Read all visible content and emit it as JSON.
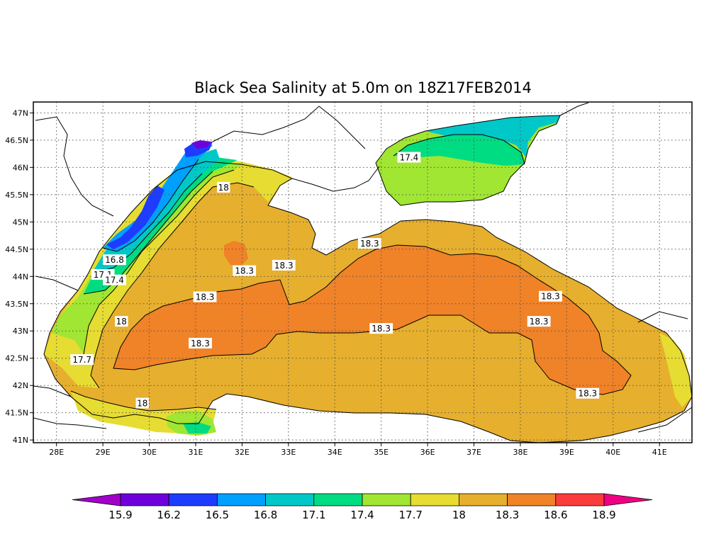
{
  "title": "Black Sea Salinity at 5.0m on 18Z17FEB2014",
  "map": {
    "lon_range": [
      27.5,
      41.7
    ],
    "lat_range": [
      40.95,
      47.2
    ],
    "x_ticks": [
      {
        "value": 28,
        "label": "28E"
      },
      {
        "value": 29,
        "label": "29E"
      },
      {
        "value": 30,
        "label": "30E"
      },
      {
        "value": 31,
        "label": "31E"
      },
      {
        "value": 32,
        "label": "32E"
      },
      {
        "value": 33,
        "label": "33E"
      },
      {
        "value": 34,
        "label": "34E"
      },
      {
        "value": 35,
        "label": "35E"
      },
      {
        "value": 36,
        "label": "36E"
      },
      {
        "value": 37,
        "label": "37E"
      },
      {
        "value": 38,
        "label": "38E"
      },
      {
        "value": 39,
        "label": "39E"
      },
      {
        "value": 40,
        "label": "40E"
      },
      {
        "value": 41,
        "label": "41E"
      }
    ],
    "y_ticks": [
      {
        "value": 41,
        "label": "41N"
      },
      {
        "value": 41.5,
        "label": "41.5N"
      },
      {
        "value": 42,
        "label": "42N"
      },
      {
        "value": 42.5,
        "label": "42.5N"
      },
      {
        "value": 43,
        "label": "43N"
      },
      {
        "value": 43.5,
        "label": "43.5N"
      },
      {
        "value": 44,
        "label": "44N"
      },
      {
        "value": 44.5,
        "label": "44.5N"
      },
      {
        "value": 45,
        "label": "45N"
      },
      {
        "value": 45.5,
        "label": "45.5N"
      },
      {
        "value": 46,
        "label": "46N"
      },
      {
        "value": 46.5,
        "label": "46.5N"
      },
      {
        "value": 47,
        "label": "47N"
      }
    ],
    "grid": true
  },
  "colorbar": {
    "levels": [
      "15.9",
      "16.2",
      "16.5",
      "16.8",
      "17.1",
      "17.4",
      "17.7",
      "18",
      "18.3",
      "18.6",
      "18.9"
    ],
    "colors": [
      "#a000c8",
      "#6e00dc",
      "#1e3cff",
      "#00a0ff",
      "#00c8c8",
      "#00dc82",
      "#a0e632",
      "#e6dc32",
      "#e6af2d",
      "#f08228",
      "#fa3c3c",
      "#f00082"
    ]
  },
  "contour_labels": [
    {
      "text": "18",
      "lon": 31.6,
      "lat": 45.63
    },
    {
      "text": "16.8",
      "lon": 29.25,
      "lat": 44.3
    },
    {
      "text": "17.1",
      "lon": 29.0,
      "lat": 44.03
    },
    {
      "text": "17.4",
      "lon": 29.25,
      "lat": 43.93
    },
    {
      "text": "18.3",
      "lon": 31.2,
      "lat": 43.62
    },
    {
      "text": "18",
      "lon": 29.4,
      "lat": 43.17
    },
    {
      "text": "17.7",
      "lon": 28.55,
      "lat": 42.47
    },
    {
      "text": "18.3",
      "lon": 31.1,
      "lat": 42.77
    },
    {
      "text": "18",
      "lon": 29.85,
      "lat": 41.67
    },
    {
      "text": "18.3",
      "lon": 32.05,
      "lat": 44.1
    },
    {
      "text": "18.3",
      "lon": 32.9,
      "lat": 44.2
    },
    {
      "text": "18.3",
      "lon": 34.75,
      "lat": 44.6
    },
    {
      "text": "17.4",
      "lon": 35.6,
      "lat": 46.18
    },
    {
      "text": "18.3",
      "lon": 35.0,
      "lat": 43.04
    },
    {
      "text": "18.3",
      "lon": 38.65,
      "lat": 43.63
    },
    {
      "text": "18.3",
      "lon": 38.4,
      "lat": 43.17
    },
    {
      "text": "18.3",
      "lon": 39.45,
      "lat": 41.85
    }
  ]
}
